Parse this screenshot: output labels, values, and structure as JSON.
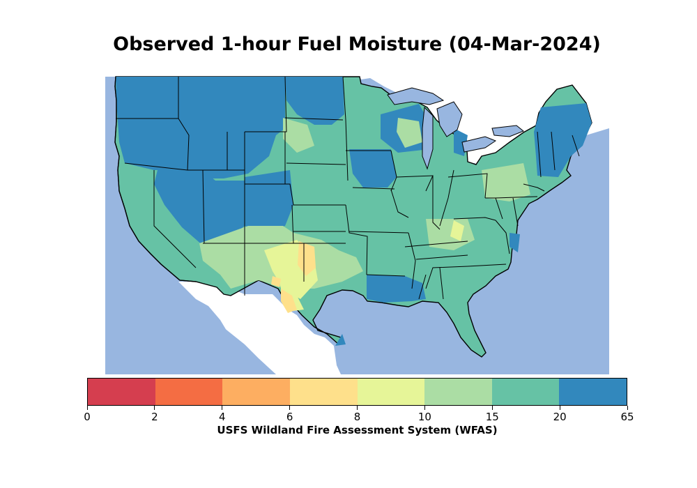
{
  "title": "Observed 1-hour Fuel Moisture (04-Mar-2024)",
  "colorbar": {
    "label": "USFS Wildland Fire Assessment System (WFAS)",
    "bins": [
      {
        "from": "0",
        "to": "2",
        "color": "#d53e4f"
      },
      {
        "from": "2",
        "to": "4",
        "color": "#f46d43"
      },
      {
        "from": "4",
        "to": "6",
        "color": "#fdae61"
      },
      {
        "from": "6",
        "to": "8",
        "color": "#fee08b"
      },
      {
        "from": "8",
        "to": "10",
        "color": "#e6f598"
      },
      {
        "from": "10",
        "to": "15",
        "color": "#abdda4"
      },
      {
        "from": "15",
        "to": "20",
        "color": "#66c2a5"
      },
      {
        "from": "20",
        "to": "65",
        "color": "#3288bd"
      }
    ],
    "tick_labels": [
      "0",
      "2",
      "4",
      "6",
      "8",
      "10",
      "15",
      "20",
      "65"
    ]
  },
  "colors": {
    "water": "#98b6e0",
    "land_outside": "#ffffff",
    "borders": "#000000"
  }
}
